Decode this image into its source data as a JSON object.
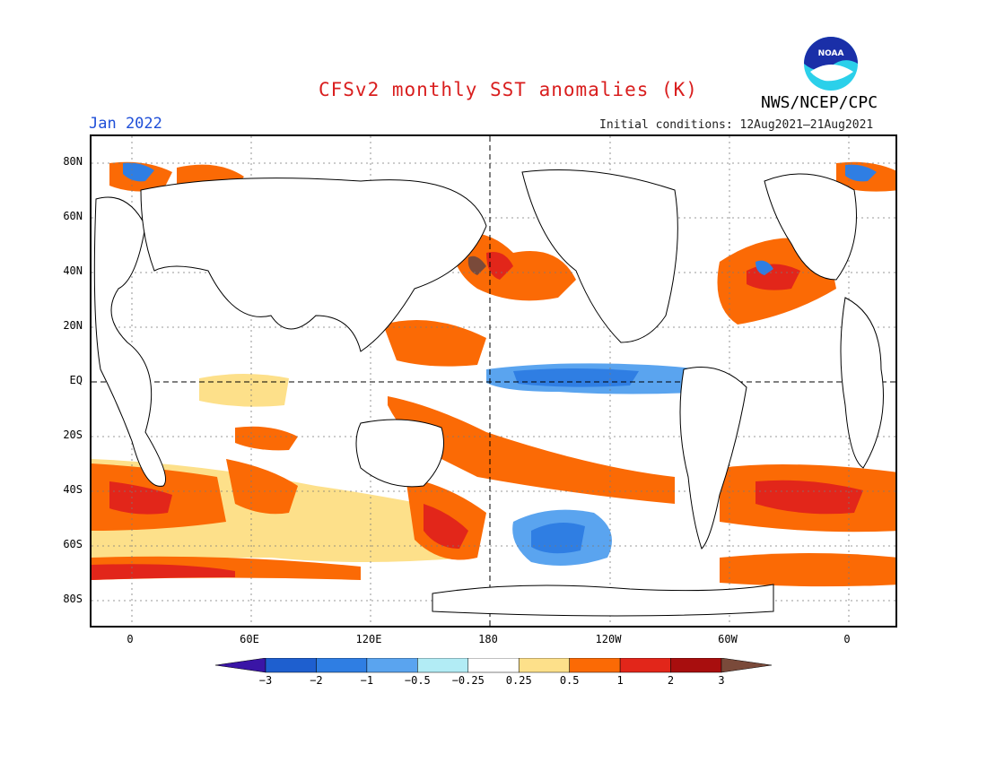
{
  "header": {
    "title": "CFSv2 monthly SST anomalies (K)",
    "month": "Jan 2022",
    "initial_conditions": "Initial conditions: 12Aug2021–21Aug2021",
    "agency": "NWS/NCEP/CPC",
    "logo_text": "NOAA"
  },
  "map": {
    "lat_labels": [
      "80N",
      "60N",
      "40N",
      "20N",
      "EQ",
      "20S",
      "40S",
      "60S",
      "80S"
    ],
    "lon_labels": [
      "0",
      "60E",
      "120E",
      "180",
      "120W",
      "60W",
      "0"
    ]
  },
  "colorbar": {
    "labels": [
      "−3",
      "−2",
      "−1",
      "−0.5",
      "−0.25",
      "0.25",
      "0.5",
      "1",
      "2",
      "3"
    ],
    "colors": [
      "#3a15a6",
      "#1e5fcf",
      "#2f7ee3",
      "#5aa4ef",
      "#b2ecf5",
      "#ffffff",
      "#fde08a",
      "#fb6a05",
      "#e2261a",
      "#a80e0e",
      "#7a4a3a"
    ]
  }
}
